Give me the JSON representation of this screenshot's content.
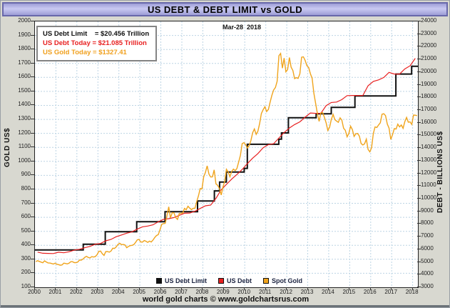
{
  "title": "US DEBT & DEBT LIMIT vs GOLD",
  "date_label": "Mar-28  2018",
  "info_box": {
    "lines": [
      {
        "text": "US Debt Limit    = $20.456 Trillion",
        "color": "#111111"
      },
      {
        "text": "US Debt Today = $21.085 Trillion",
        "color": "#e82020"
      },
      {
        "text": "US Gold Today = $1327.41",
        "color": "#f0a01e"
      }
    ]
  },
  "left_axis": {
    "label": "GOLD US$",
    "ticks": [
      100,
      200,
      300,
      400,
      500,
      600,
      700,
      800,
      900,
      1000,
      1100,
      1200,
      1300,
      1400,
      1500,
      1600,
      1700,
      1800,
      1900,
      2000
    ]
  },
  "right_axis": {
    "label": "DEBT - BILLIONS US$",
    "ticks": [
      3000,
      4000,
      5000,
      6000,
      7000,
      8000,
      9000,
      10000,
      11000,
      12000,
      13000,
      14000,
      15000,
      16000,
      17000,
      18000,
      19000,
      20000,
      21000,
      22000,
      23000,
      24000
    ]
  },
  "x_axis": {
    "ticks": [
      2000,
      2001,
      2002,
      2003,
      2004,
      2005,
      2006,
      2007,
      2008,
      2009,
      2010,
      2011,
      2012,
      2013,
      2014,
      2015,
      2016,
      2017,
      2018
    ]
  },
  "legend": [
    {
      "label": "US Debt Limit",
      "color": "#101010"
    },
    {
      "label": "US Debt",
      "color": "#e82020"
    },
    {
      "label": "Spot Gold",
      "color": "#f0a41c"
    }
  ],
  "caption": "world gold charts © www.goldchartsrus.com",
  "colors": {
    "grid": "#bcd4e4",
    "plot_bg": "#ffffff",
    "frame": "#222222",
    "title_bar": "#b9b9e3",
    "outer_bg": "#d8d8d0",
    "debt_limit": "#101010",
    "debt": "#e82020",
    "gold": "#f0a41c"
  },
  "chart_data": {
    "type": "line",
    "title": "US DEBT & DEBT LIMIT vs GOLD",
    "x_range": [
      2000,
      2018.25
    ],
    "left_axis_range": [
      100,
      2000
    ],
    "right_axis_range": [
      3000,
      24000
    ],
    "grid": true,
    "legend_position": "bottom-inside",
    "series": [
      {
        "name": "US Debt Limit",
        "axis": "right",
        "style": "step",
        "color": "#101010",
        "width": 2,
        "units": "billions USD",
        "points": [
          [
            2000.0,
            5950
          ],
          [
            2002.3,
            6400
          ],
          [
            2003.35,
            7384
          ],
          [
            2004.85,
            8184
          ],
          [
            2006.2,
            8965
          ],
          [
            2007.75,
            9815
          ],
          [
            2008.55,
            10615
          ],
          [
            2008.8,
            11315
          ],
          [
            2009.12,
            12104
          ],
          [
            2009.97,
            12394
          ],
          [
            2010.12,
            14294
          ],
          [
            2011.62,
            14694
          ],
          [
            2011.75,
            15194
          ],
          [
            2012.08,
            16394
          ],
          [
            2013.4,
            16699
          ],
          [
            2014.12,
            17212
          ],
          [
            2015.25,
            18113
          ],
          [
            2017.2,
            19847
          ],
          [
            2017.95,
            20456
          ]
        ]
      },
      {
        "name": "US Debt",
        "axis": "right",
        "style": "line",
        "color": "#e82020",
        "width": 1.2,
        "units": "billions USD",
        "start": 2000.125,
        "interval": 0.25,
        "values": [
          5776,
          5686,
          5674,
          5662,
          5774,
          5726,
          5807,
          5943,
          6006,
          6126,
          6228,
          6406,
          6460,
          6670,
          6783,
          6998,
          7131,
          7274,
          7379,
          7596,
          7776,
          7837,
          7933,
          8170,
          8371,
          8420,
          8507,
          8680,
          8849,
          8868,
          9008,
          9229,
          9438,
          9492,
          10025,
          10700,
          11127,
          11545,
          11910,
          12311,
          12773,
          13202,
          13562,
          14025,
          14270,
          14343,
          14790,
          15223,
          15582,
          15856,
          16066,
          16433,
          16771,
          16738,
          16738,
          17352,
          17601,
          17633,
          17824,
          18141,
          18152,
          18152,
          18151,
          18922,
          19265,
          19382,
          19573,
          19977,
          19846,
          19844,
          20245,
          20493,
          21085
        ]
      },
      {
        "name": "Spot Gold",
        "axis": "left",
        "style": "line",
        "color": "#f0a41c",
        "width": 1.4,
        "units": "USD per oz",
        "start": 2000.042,
        "interval": 0.083333,
        "values": [
          283,
          290,
          285,
          280,
          275,
          289,
          281,
          274,
          273,
          270,
          266,
          272,
          265,
          262,
          258,
          260,
          272,
          270,
          267,
          272,
          283,
          283,
          276,
          276,
          281,
          295,
          294,
          302,
          314,
          321,
          313,
          310,
          319,
          316,
          319,
          333,
          356,
          359,
          340,
          328,
          355,
          356,
          351,
          359,
          379,
          378,
          389,
          407,
          414,
          405,
          406,
          403,
          383,
          392,
          398,
          400,
          405,
          420,
          439,
          442,
          424,
          423,
          434,
          429,
          421,
          430,
          424,
          437,
          456,
          470,
          476,
          510,
          550,
          555,
          557,
          610,
          675,
          596,
          633,
          632,
          598,
          585,
          627,
          629,
          631,
          664,
          654,
          679,
          666,
          655,
          665,
          665,
          712,
          754,
          806,
          803,
          889,
          922,
          968,
          909,
          888,
          889,
          939,
          839,
          829,
          806,
          760,
          816,
          858,
          943,
          924,
          890,
          928,
          945,
          934,
          949,
          996,
          1043,
          1127,
          1134,
          1118,
          1095,
          1113,
          1148,
          1205,
          1232,
          1193,
          1215,
          1271,
          1342,
          1369,
          1390,
          1356,
          1372,
          1424,
          1473,
          1510,
          1528,
          1572,
          1755,
          1771,
          1666,
          1738,
          1640,
          1656,
          1742,
          1673,
          1649,
          1591,
          1598,
          1593,
          1626,
          1744,
          1747,
          1721,
          1684,
          1671,
          1627,
          1593,
          1487,
          1414,
          1343,
          1286,
          1347,
          1348,
          1316,
          1275,
          1221,
          1244,
          1300,
          1336,
          1298,
          1288,
          1279,
          1311,
          1295,
          1237,
          1222,
          1175,
          1200,
          1251,
          1227,
          1178,
          1197,
          1199,
          1181,
          1128,
          1117,
          1125,
          1159,
          1086,
          1068,
          1097,
          1199,
          1246,
          1242,
          1260,
          1276,
          1337,
          1340,
          1327,
          1266,
          1238,
          1157,
          1192,
          1234,
          1231,
          1266,
          1246,
          1260,
          1236,
          1283,
          1314,
          1280,
          1282,
          1264,
          1331,
          1330,
          1327
        ]
      }
    ]
  }
}
